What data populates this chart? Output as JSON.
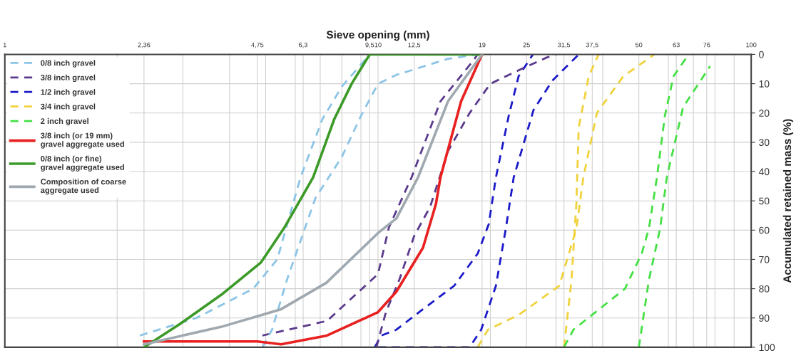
{
  "chart_data": {
    "type": "line",
    "xlabel": "Sieve opening (mm)",
    "ylabel": "Accumulated retained mass (%)",
    "log": "x",
    "xlim": [
      1,
      100
    ],
    "ylim": [
      100,
      0
    ],
    "xticks": [
      1,
      {
        "value": 2.36,
        "label": "2,36"
      },
      {
        "value": 4.75,
        "label": "4,75"
      },
      {
        "value": 6.3,
        "label": "6,3"
      },
      {
        "value": 9.5,
        "label": "9,5"
      },
      10,
      {
        "value": 12.5,
        "label": "12,5"
      },
      19,
      25,
      {
        "value": 31.5,
        "label": "31,5"
      },
      {
        "value": 37.5,
        "label": "37,5"
      },
      50,
      63,
      76,
      100
    ],
    "yticks": [
      0,
      10,
      20,
      30,
      40,
      50,
      60,
      70,
      80,
      90,
      100
    ],
    "grid": true,
    "legend": "top left",
    "marker": "none",
    "series": [
      {
        "name": "0/8 inch gravel",
        "color": "#8cc4e6",
        "line_style": "dashed",
        "x": [
          2.3,
          3.26,
          4.63,
          5.37,
          6.2,
          7.1,
          8.0,
          9.5
        ],
        "values": [
          96,
          90,
          80,
          70,
          42,
          22,
          11,
          0
        ]
      },
      {
        "name": "3/8 inch gravel",
        "color": "#5a3a8c",
        "line_style": "dashed",
        "x": [
          4.9,
          7.3,
          10,
          10.7,
          12.3,
          14.7,
          17.9,
          18.5
        ],
        "values": [
          96,
          91,
          75,
          59,
          42,
          16,
          2.5,
          0
        ]
      },
      {
        "name": "1/2 inch gravel",
        "color": "#1a1ac8",
        "line_style": "dashed",
        "x": [
          9.8,
          10.2,
          11.2,
          13.2,
          16.0,
          18.5,
          19.8,
          20.7,
          22.4,
          23.8,
          26
        ],
        "values": [
          100,
          96,
          94,
          87,
          79,
          68,
          58,
          42,
          21,
          7.5,
          0
        ]
      },
      {
        "name": "3/4 inch gravel",
        "color": "#f0d23c",
        "line_style": "dashed",
        "x": [
          31.5,
          33,
          34,
          34.5,
          36.7,
          39
        ],
        "values": [
          100,
          77,
          51,
          25,
          7.5,
          0
        ]
      },
      {
        "name": "2 inch gravel",
        "color": "#44e044",
        "line_style": "dashed",
        "x": [
          31.5,
          33.4,
          45.9,
          50.9,
          53.2,
          55.9,
          58.7,
          61.9,
          68
        ],
        "values": [
          100,
          94,
          80,
          68,
          59.5,
          42,
          21,
          7.5,
          0
        ]
      },
      {
        "name": "3/8 inch (or 19 mm)\ngravel aggregate used",
        "color": "#e82020",
        "line_style": "solid",
        "x": [
          2.36,
          4.75,
          5.5,
          7.3,
          10,
          11.2,
          13.2,
          14.3,
          14.7,
          16.7,
          19
        ],
        "values": [
          98,
          98,
          99,
          96,
          88,
          81,
          66,
          51,
          42,
          16,
          0
        ]
      },
      {
        "name": "0/8 inch (or fine)\ngravel aggregate used",
        "color": "#3c9a28",
        "line_style": "solid",
        "x": [
          2.36,
          2.95,
          3.81,
          4.86,
          5.62,
          6.7,
          7.64,
          8.5,
          9.5,
          19
        ],
        "values": [
          100,
          92,
          82,
          71,
          59,
          42,
          22,
          10,
          0,
          0
        ]
      },
      {
        "name": "Composition of coarse\naggregate used",
        "color": "#a0a8b0",
        "line_style": "solid",
        "x": [
          2.36,
          3.81,
          5.5,
          7.27,
          10,
          11.2,
          12.8,
          15.4,
          19
        ],
        "values": [
          99,
          93,
          87,
          78,
          61,
          56,
          42,
          16,
          0
        ]
      },
      {
        "color": "#8cc4e6",
        "line_style": "dashed",
        "x": [
          4.9,
          5.2,
          5.7,
          6.8,
          8.0,
          9.0,
          10,
          11.2,
          15.4,
          18.6
        ],
        "values": [
          100,
          94,
          77,
          49,
          35,
          21,
          10,
          7,
          1.5,
          0
        ]
      },
      {
        "color": "#5a3a8c",
        "line_style": "dashed",
        "x": [
          9.9,
          10.5,
          11.4,
          12.5,
          13.8,
          15.4,
          17.6,
          20,
          24.2,
          28.4,
          30
        ],
        "values": [
          100,
          88,
          77,
          62,
          52,
          33,
          20,
          10,
          5,
          1,
          0
        ]
      },
      {
        "color": "#1a1ac8",
        "line_style": "dashed",
        "x": [
          10,
          17.6,
          18.9,
          20.7,
          22.0,
          23.1,
          26.1,
          29.3,
          34.5
        ],
        "values": [
          100,
          100,
          94,
          79,
          59.5,
          42,
          19,
          9,
          0
        ]
      },
      {
        "color": "#f0d23c",
        "line_style": "dashed",
        "x": [
          18.5,
          19.7,
          23.8,
          30.6,
          34,
          35.5,
          38.6,
          45.4,
          55
        ],
        "values": [
          100,
          94,
          89,
          79,
          59.5,
          42,
          20,
          7.5,
          0
        ]
      },
      {
        "color": "#44e044",
        "line_style": "dashed",
        "x": [
          50,
          53.2,
          57,
          59.4,
          65.7,
          77.6
        ],
        "values": [
          100,
          77,
          59.5,
          42,
          18,
          4
        ]
      }
    ]
  }
}
